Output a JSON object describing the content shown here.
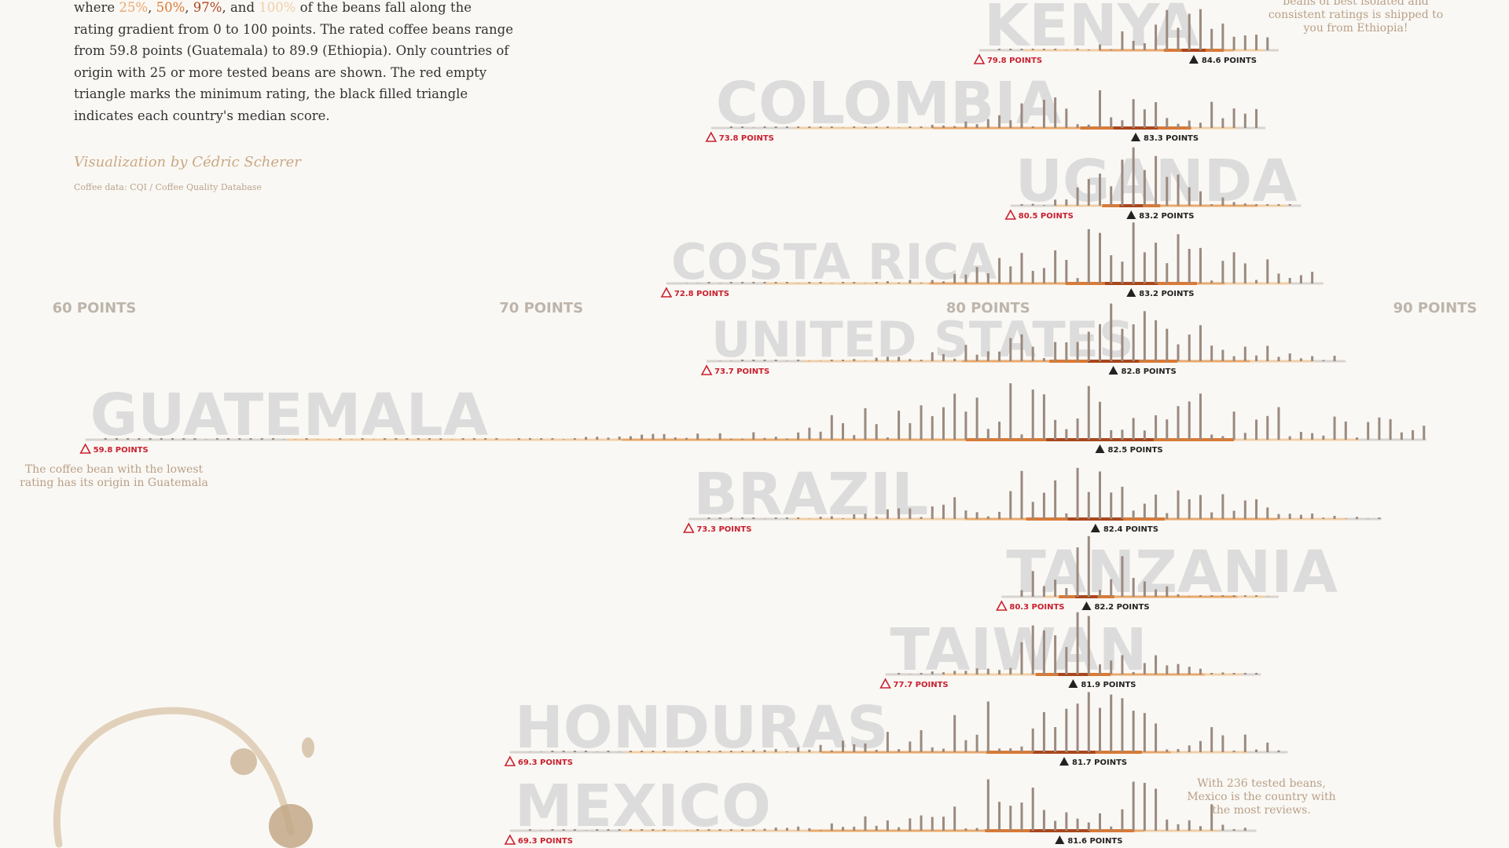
{
  "intro": {
    "line_start": "where ",
    "p25": "25%",
    "p50": "50%",
    "p97": "97%",
    "p100": "100%",
    "rest": " of the beans fall along the rating gradient from 0 to 100 points. The rated coffee beans range from 59.8 points (Guatemala) to 89.9 (Ethiopia). Only countries of origin with 25 or more tested beans are shown. The red empty triangle marks the minimum rating, the black filled triangle indicates each country's median score."
  },
  "credit": "Visualization by Cédric Scherer",
  "credit_sub": "Coffee data: CQI / Coffee Quality Database",
  "notes": {
    "ethiopia": "beans of best isolated and consistent ratings is shipped to you from Ethiopia!",
    "guatemala": "The coffee bean with the lowest rating has its origin in Guatemala",
    "mexico": "With 236 tested beans, Mexico is the country with the most reviews."
  },
  "colors": {
    "background": "#faf8f4",
    "country_label": "#dcdcdc",
    "baseline": "#d8d4cf",
    "bar": "#9a8a80",
    "p25": "#e9a96c",
    "p50": "#d97a36",
    "p97": "#a9471c",
    "p100": "#f0cfa8",
    "min_marker": "#c9202f",
    "median_marker": "#222222"
  },
  "chart_data": {
    "type": "bar",
    "x_axis": {
      "ticks": [
        60,
        70,
        80,
        90
      ],
      "tick_labels": [
        "60 POINTS",
        "70 POINTS",
        "80 POINTS",
        "90 POINTS"
      ],
      "range": [
        60,
        90
      ]
    },
    "countries": [
      {
        "name": "KENYA",
        "min": 79.8,
        "median": 84.6,
        "max": 86.5,
        "min_label": "79.8 POINTS",
        "median_label": "84.6 POINTS"
      },
      {
        "name": "COLOMBIA",
        "min": 73.8,
        "median": 83.3,
        "max": 86.2,
        "min_label": "73.8 POINTS",
        "median_label": "83.3 POINTS"
      },
      {
        "name": "UGANDA",
        "min": 80.5,
        "median": 83.2,
        "max": 87.0,
        "min_label": "80.5 POINTS",
        "median_label": "83.2 POINTS"
      },
      {
        "name": "COSTA RICA",
        "min": 72.8,
        "median": 83.2,
        "max": 87.5,
        "min_label": "72.8 POINTS",
        "median_label": "83.2 POINTS"
      },
      {
        "name": "UNITED STATES",
        "min": 73.7,
        "median": 82.8,
        "max": 88.0,
        "min_label": "73.7 POINTS",
        "median_label": "82.8 POINTS"
      },
      {
        "name": "GUATEMALA",
        "min": 59.8,
        "median": 82.5,
        "max": 89.8,
        "min_label": "59.8 POINTS",
        "median_label": "82.5 POINTS"
      },
      {
        "name": "BRAZIL",
        "min": 73.3,
        "median": 82.4,
        "max": 88.8,
        "min_label": "73.3 POINTS",
        "median_label": "82.4 POINTS"
      },
      {
        "name": "TANZANIA",
        "min": 80.3,
        "median": 82.2,
        "max": 86.5,
        "min_label": "80.3 POINTS",
        "median_label": "82.2 POINTS"
      },
      {
        "name": "TAIWAN",
        "min": 77.7,
        "median": 81.9,
        "max": 86.1,
        "min_label": "77.7 POINTS",
        "median_label": "81.9 POINTS"
      },
      {
        "name": "HONDURAS",
        "min": 69.3,
        "median": 81.7,
        "max": 86.7,
        "min_label": "69.3 POINTS",
        "median_label": "81.7 POINTS"
      },
      {
        "name": "MEXICO",
        "min": 69.3,
        "median": 81.6,
        "max": 86.0,
        "min_label": "69.3 POINTS",
        "median_label": "81.6 POINTS"
      }
    ]
  }
}
